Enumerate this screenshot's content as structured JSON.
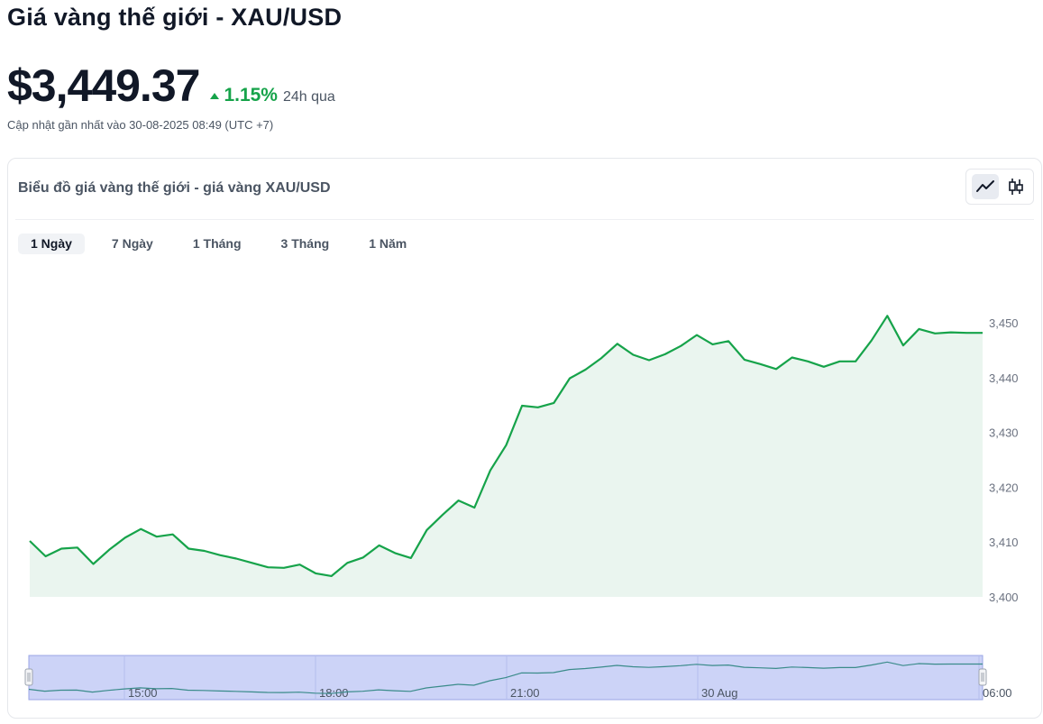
{
  "page": {
    "title": "Giá vàng thế giới - XAU/USD",
    "price": "$3,449.37",
    "change_pct": "1.15%",
    "change_period": "24h qua",
    "change_direction": "up",
    "updated": "Cập nhật gần nhất vào 30-08-2025 08:49 (UTC +7)"
  },
  "card": {
    "title": "Biểu đồ giá vàng thế giới - giá vàng XAU/USD",
    "chart_types": [
      "line-chart-icon",
      "candlestick-icon"
    ],
    "active_chart_type": "line-chart-icon",
    "tabs": [
      "1 Ngày",
      "7 Ngày",
      "1 Tháng",
      "3 Tháng",
      "1 Năm"
    ],
    "active_tab": 0
  },
  "colors": {
    "up": "#16a34a",
    "line": "#16a34a",
    "area": "#eaf5ef",
    "navigator_fill": "#ccd3f7",
    "navigator_line": "#3a8b8a"
  },
  "chart_data": {
    "type": "area",
    "title": "",
    "xlabel": "",
    "ylabel": "",
    "ylim": [
      3400,
      3453
    ],
    "y_ticks": [
      "3,400",
      "3,410",
      "3,420",
      "3,430",
      "3,440",
      "3,450"
    ],
    "navigator_time_labels": [
      "15:00",
      "18:00",
      "21:00",
      "30 Aug",
      "06:00"
    ],
    "grid": false,
    "series": [
      {
        "values": [
          3410.2,
          3407.4,
          3408.8,
          3409.0,
          3406.0,
          3408.6,
          3410.8,
          3412.4,
          3411.0,
          3411.4,
          3408.8,
          3408.4,
          3407.6,
          3407.0,
          3406.2,
          3405.4,
          3405.3,
          3405.9,
          3404.3,
          3403.8,
          3406.2,
          3407.2,
          3409.4,
          3408.0,
          3407.1,
          3412.2,
          3415.0,
          3417.6,
          3416.3,
          3423.1,
          3427.7,
          3434.9,
          3434.6,
          3435.4,
          3439.9,
          3441.5,
          3443.6,
          3446.2,
          3444.2,
          3443.2,
          3444.3,
          3445.8,
          3447.8,
          3446.1,
          3446.7,
          3443.3,
          3442.5,
          3441.6,
          3443.7,
          3443.0,
          3442.0,
          3443.0,
          3443.0,
          3446.8,
          3451.3,
          3445.9,
          3448.9,
          3448.1,
          3448.3,
          3448.2,
          3448.2
        ]
      }
    ]
  }
}
